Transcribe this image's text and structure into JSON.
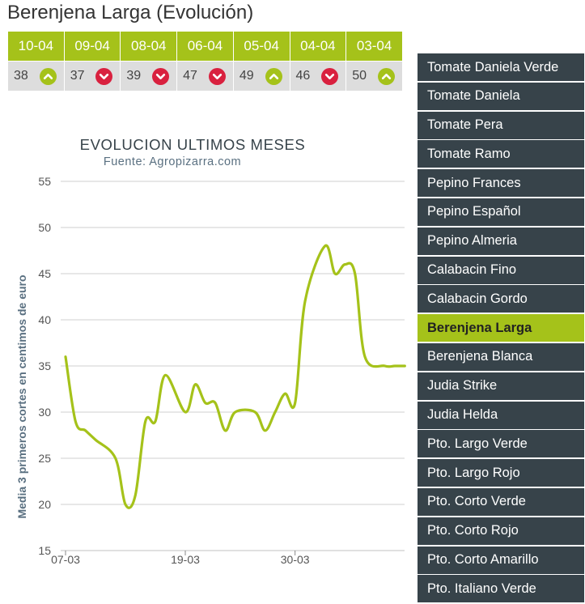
{
  "page_title": "Berenjena Larga (Evolución)",
  "price_table": {
    "dates": [
      "10-04",
      "09-04",
      "08-04",
      "06-04",
      "05-04",
      "04-04",
      "03-04"
    ],
    "values": [
      38,
      37,
      39,
      47,
      49,
      46,
      50
    ],
    "trends": [
      "up",
      "down",
      "down",
      "down",
      "up",
      "down",
      "up"
    ],
    "icons": [
      "chevron-up-icon",
      "chevron-down-icon"
    ]
  },
  "colors": {
    "accent": "#a5c21a",
    "down": "#d9213f",
    "sidebar_bg": "#37434a",
    "axis_text": "#5a7081",
    "line": "#a5c21a"
  },
  "chart_data": {
    "type": "line",
    "title": "EVOLUCION ULTIMOS MESES",
    "subtitle": "Fuente: Agropizarra.com",
    "xlabel": "",
    "ylabel": "Media 3 primeros cortes en centimos de euro",
    "ylim": [
      15,
      55
    ],
    "yticks": [
      15,
      20,
      25,
      30,
      35,
      40,
      45,
      50,
      55
    ],
    "xticks": [
      {
        "label": "07-03",
        "date": "2018-03-07"
      },
      {
        "label": "19-03",
        "date": "2018-03-19"
      },
      {
        "label": "30-03",
        "date": "2018-03-30"
      }
    ],
    "grid": true,
    "series": [
      {
        "x": [
          "2018-03-07",
          "2018-03-08",
          "2018-03-09",
          "2018-03-10",
          "2018-03-12",
          "2018-03-13",
          "2018-03-14",
          "2018-03-15",
          "2018-03-16",
          "2018-03-17",
          "2018-03-19",
          "2018-03-20",
          "2018-03-21",
          "2018-03-22",
          "2018-03-23",
          "2018-03-24",
          "2018-03-26",
          "2018-03-27",
          "2018-03-28",
          "2018-03-29",
          "2018-03-30",
          "2018-03-31",
          "2018-04-02",
          "2018-04-03",
          "2018-04-04",
          "2018-04-05",
          "2018-04-06",
          "2018-04-08",
          "2018-04-09",
          "2018-04-10"
        ],
        "values": [
          36,
          29,
          28,
          27,
          25,
          20,
          21,
          29,
          29,
          34,
          30,
          33,
          31,
          31,
          28,
          30,
          30,
          28,
          30,
          32,
          31,
          42,
          48,
          45,
          46,
          45,
          36,
          35,
          35,
          35
        ]
      }
    ]
  },
  "sidebar": {
    "active_index": 9,
    "items": [
      "Tomate Daniela Verde",
      "Tomate Daniela",
      "Tomate Pera",
      "Tomate Ramo",
      "Pepino Frances",
      "Pepino Español",
      "Pepino Almeria",
      "Calabacin Fino",
      "Calabacin Gordo",
      "Berenjena Larga",
      "Berenjena Blanca",
      "Judia Strike",
      "Judia Helda",
      "Pto. Largo Verde",
      "Pto. Largo Rojo",
      "Pto. Corto Verde",
      "Pto. Corto Rojo",
      "Pto. Corto Amarillo",
      "Pto. Italiano Verde"
    ]
  }
}
